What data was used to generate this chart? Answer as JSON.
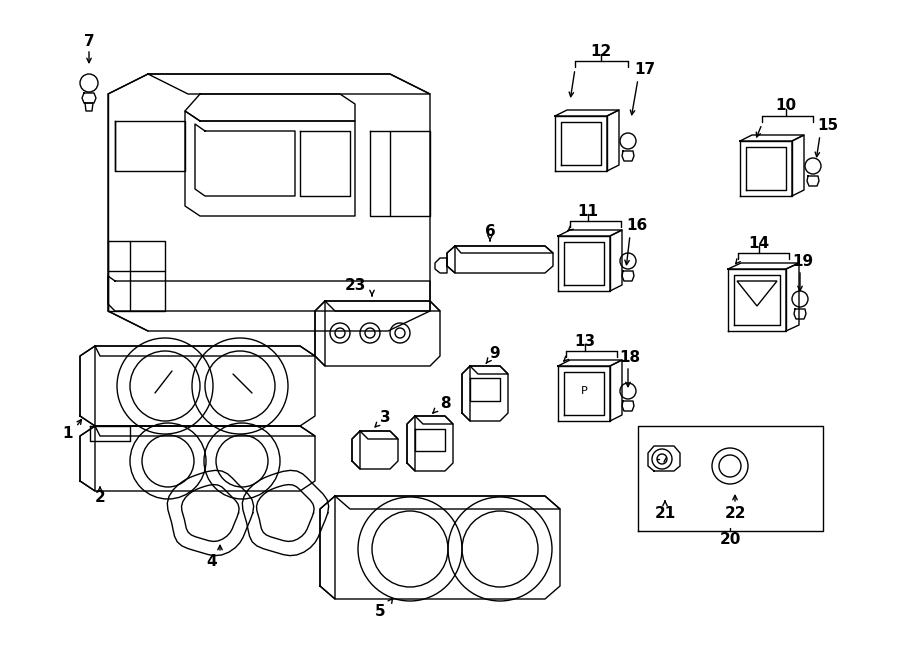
{
  "bg_color": "#ffffff",
  "line_color": "#000000",
  "lw": 1.0,
  "label_fs": 11,
  "fig_w": 9.0,
  "fig_h": 6.61,
  "dpi": 100
}
